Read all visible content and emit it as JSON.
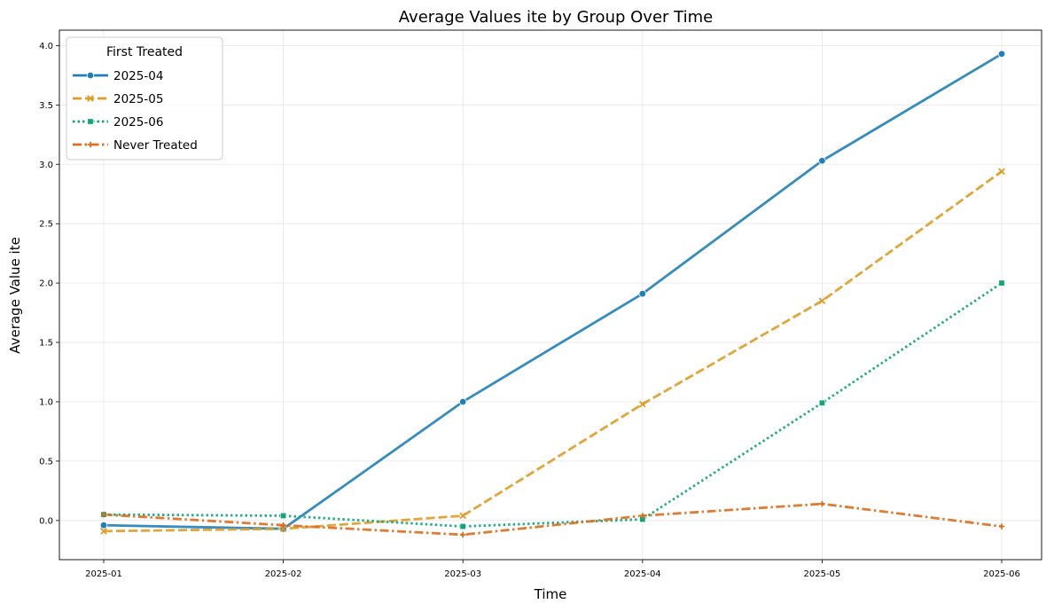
{
  "chart_data": {
    "type": "line",
    "title": "Average Values ite by Group Over Time",
    "xlabel": "Time",
    "ylabel": "Average Value ite",
    "categories": [
      "2025-01",
      "2025-02",
      "2025-03",
      "2025-04",
      "2025-05",
      "2025-06"
    ],
    "ylim": [
      -0.33,
      4.13
    ],
    "yticks": [
      0.0,
      0.5,
      1.0,
      1.5,
      2.0,
      2.5,
      3.0,
      3.5,
      4.0
    ],
    "ytick_labels": [
      "0.0",
      "0.5",
      "1.0",
      "1.5",
      "2.0",
      "2.5",
      "3.0",
      "3.5",
      "4.0"
    ],
    "grid": true,
    "legend": {
      "title": "First Treated",
      "placement": "top-left"
    },
    "series": [
      {
        "name": "2025-04",
        "color": "#1f7fb8",
        "dash": "solid",
        "marker": "circle",
        "values": [
          -0.04,
          -0.07,
          1.0,
          1.91,
          3.03,
          3.93
        ]
      },
      {
        "name": "2025-05",
        "color": "#e09b24",
        "dash": "dashed",
        "marker": "x",
        "values": [
          -0.09,
          -0.07,
          0.04,
          0.98,
          1.85,
          2.94
        ]
      },
      {
        "name": "2025-06",
        "color": "#11a579",
        "dash": "dotted",
        "marker": "square",
        "values": [
          0.05,
          0.04,
          -0.05,
          0.01,
          0.99,
          2.0
        ]
      },
      {
        "name": "Never Treated",
        "color": "#dc6e1c",
        "dash": "dashdot",
        "marker": "plus",
        "values": [
          0.05,
          -0.04,
          -0.12,
          0.04,
          0.14,
          -0.05
        ]
      }
    ]
  }
}
